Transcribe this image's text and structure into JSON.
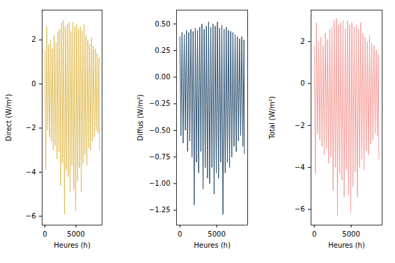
{
  "chart_data": [
    {
      "type": "line",
      "xlabel": "Heures (h)",
      "ylabel": "Direct (W/m²)",
      "color": "#DDB43F",
      "line_style": "dotted",
      "x": [
        0,
        150,
        300,
        450,
        600,
        750,
        900,
        1050,
        1200,
        1350,
        1500,
        1650,
        1800,
        1950,
        2100,
        2250,
        2400,
        2550,
        2700,
        2850,
        3000,
        3150,
        3300,
        3450,
        3600,
        3750,
        3900,
        4050,
        4200,
        4350,
        4500,
        4650,
        4800,
        4950,
        5100,
        5250,
        5400,
        5550,
        5700,
        5850,
        6000,
        6150,
        6300,
        6450,
        6600,
        6750,
        6900,
        7050,
        7200,
        7350,
        7500,
        7650,
        7800,
        7950,
        8100,
        8250,
        8400,
        8550,
        8700,
        8760
      ],
      "values": [
        1.5,
        -3.9,
        2.6,
        -2.1,
        1.8,
        -2.4,
        2.0,
        -2.6,
        1.6,
        -3.0,
        2.2,
        -2.8,
        1.9,
        -3.4,
        2.4,
        -3.1,
        2.5,
        -4.6,
        2.8,
        -3.6,
        2.9,
        -5.9,
        2.6,
        -3.9,
        2.7,
        -4.2,
        2.8,
        -4.9,
        2.4,
        -3.7,
        2.8,
        -4.8,
        2.6,
        -5.75,
        2.7,
        -4.4,
        2.5,
        -3.8,
        2.6,
        -4.9,
        2.4,
        -3.6,
        2.7,
        -3.2,
        2.2,
        -3.7,
        2.0,
        -2.9,
        1.8,
        -3.0,
        2.1,
        -2.6,
        1.7,
        -2.4,
        1.6,
        -2.1,
        1.4,
        -2.2,
        1.2,
        -3.0
      ],
      "xlim": [
        -438,
        9198
      ],
      "xticks": [
        0,
        5000
      ],
      "ylim": [
        -6.4,
        3.35
      ],
      "yticks": [
        -6,
        -4,
        -2,
        0,
        2
      ]
    },
    {
      "type": "line",
      "xlabel": "Heures (h)",
      "ylabel": "Diffus (W/m²)",
      "color": "#2D5170",
      "line_style": "solid",
      "x": [
        0,
        150,
        300,
        450,
        600,
        750,
        900,
        1050,
        1200,
        1350,
        1500,
        1650,
        1800,
        1950,
        2100,
        2250,
        2400,
        2550,
        2700,
        2850,
        3000,
        3150,
        3300,
        3450,
        3600,
        3750,
        3900,
        4050,
        4200,
        4350,
        4500,
        4650,
        4800,
        4950,
        5100,
        5250,
        5400,
        5550,
        5700,
        5850,
        6000,
        6150,
        6300,
        6450,
        6600,
        6750,
        6900,
        7050,
        7200,
        7350,
        7500,
        7650,
        7800,
        7950,
        8100,
        8250,
        8400,
        8550,
        8700,
        8760
      ],
      "values": [
        0.38,
        -0.55,
        0.42,
        -0.62,
        0.4,
        -0.5,
        0.44,
        -0.7,
        0.42,
        -0.6,
        0.45,
        -0.75,
        0.43,
        -1.2,
        0.46,
        -0.8,
        0.44,
        -0.9,
        0.47,
        -0.7,
        0.5,
        -1.05,
        0.45,
        -0.85,
        0.48,
        -0.95,
        0.52,
        -1.0,
        0.47,
        -0.85,
        0.5,
        -1.1,
        0.48,
        -0.9,
        0.52,
        -0.95,
        0.46,
        -0.8,
        0.49,
        -1.29,
        0.45,
        -0.9,
        0.47,
        -0.8,
        0.44,
        -0.85,
        0.43,
        -0.75,
        0.42,
        -0.65,
        0.4,
        -0.7,
        0.38,
        -0.6,
        0.36,
        -0.55,
        0.38,
        -0.65,
        0.35,
        -0.72
      ],
      "xlim": [
        -438,
        9198
      ],
      "xticks": [
        0,
        5000
      ],
      "ylim": [
        -1.39,
        0.63
      ],
      "yticks": [
        {
          "value": -1.25,
          "label": "−1.25"
        },
        {
          "value": -1.0,
          "label": "−1.00"
        },
        {
          "value": -0.75,
          "label": "−0.75"
        },
        {
          "value": -0.5,
          "label": "−0.50"
        },
        {
          "value": -0.25,
          "label": "−0.25"
        },
        {
          "value": 0,
          "label": "0.00"
        },
        {
          "value": 0.25,
          "label": "0.25"
        },
        {
          "value": 0.5,
          "label": "0.50"
        }
      ]
    },
    {
      "type": "line",
      "xlabel": "Heures (h)",
      "ylabel": "Total (W/m²)",
      "color": "#F4A09C",
      "line_style": "solid",
      "x": [
        0,
        150,
        300,
        450,
        600,
        750,
        900,
        1050,
        1200,
        1350,
        1500,
        1650,
        1800,
        1950,
        2100,
        2250,
        2400,
        2550,
        2700,
        2850,
        3000,
        3150,
        3300,
        3450,
        3600,
        3750,
        3900,
        4050,
        4200,
        4350,
        4500,
        4650,
        4800,
        4950,
        5100,
        5250,
        5400,
        5550,
        5700,
        5850,
        6000,
        6150,
        6300,
        6450,
        6600,
        6750,
        6900,
        7050,
        7200,
        7350,
        7500,
        7650,
        7800,
        7950,
        8100,
        8250,
        8400,
        8550,
        8700,
        8760
      ],
      "values": [
        1.8,
        -4.3,
        2.9,
        -2.4,
        2.0,
        -2.7,
        2.2,
        -3.0,
        1.8,
        -3.4,
        2.4,
        -3.1,
        2.1,
        -3.8,
        2.6,
        -3.5,
        2.7,
        -5.1,
        3.0,
        -4.0,
        3.1,
        -6.3,
        2.8,
        -4.3,
        2.9,
        -4.6,
        3.0,
        -5.4,
        2.6,
        -4.1,
        3.0,
        -5.3,
        2.8,
        -6.15,
        2.9,
        -4.9,
        2.7,
        -4.2,
        2.8,
        -5.4,
        2.6,
        -4.0,
        2.9,
        -3.6,
        2.4,
        -4.1,
        2.2,
        -3.2,
        2.0,
        -3.4,
        2.3,
        -2.9,
        1.9,
        -2.7,
        1.8,
        -2.4,
        1.6,
        -2.5,
        1.4,
        -3.6
      ],
      "xlim": [
        -438,
        9198
      ],
      "xticks": [
        0,
        5000
      ],
      "ylim": [
        -6.75,
        3.5
      ],
      "yticks": [
        -6,
        -4,
        -2,
        0,
        2
      ]
    }
  ]
}
